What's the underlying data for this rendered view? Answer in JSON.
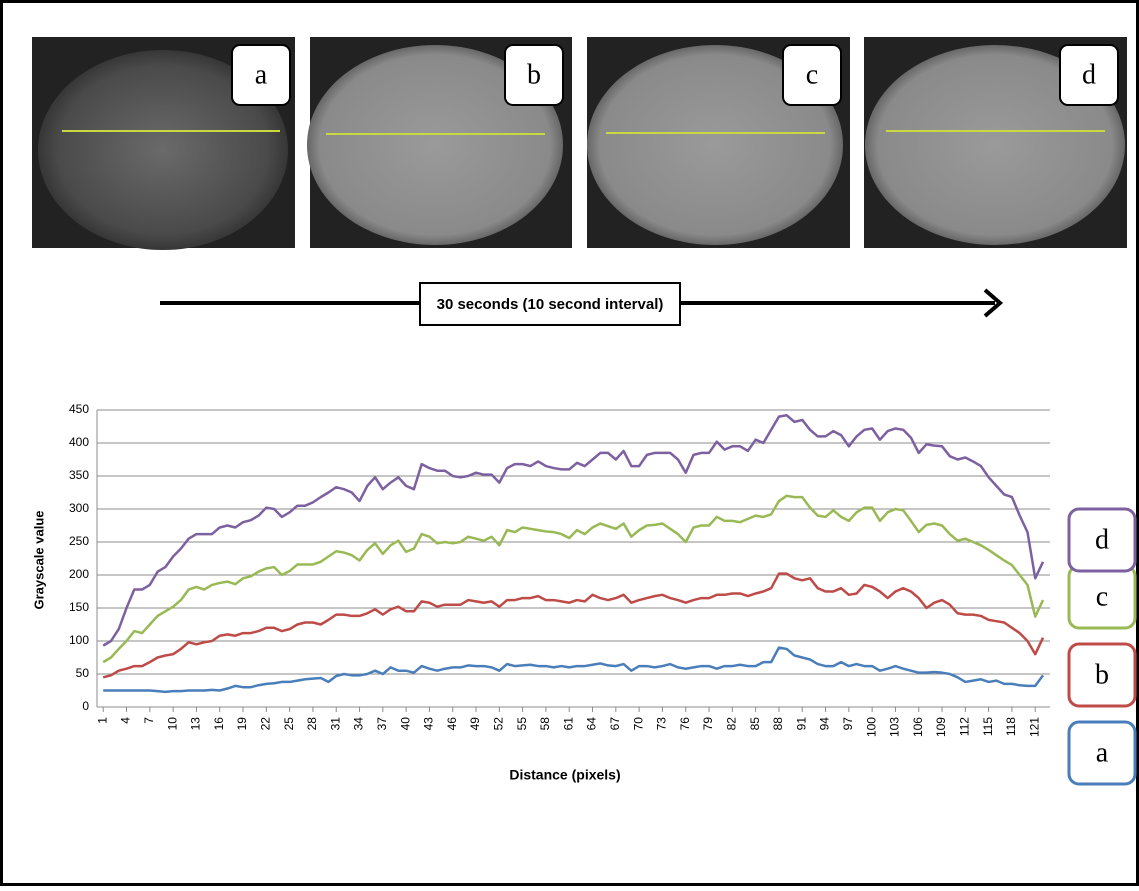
{
  "images": [
    {
      "label": "a"
    },
    {
      "label": "b"
    },
    {
      "label": "c"
    },
    {
      "label": "d"
    }
  ],
  "arrow_label": "30 seconds (10 second interval)",
  "chart_data": {
    "type": "line",
    "x_label": "Distance (pixels)",
    "y_label": "Grayscale value",
    "x": [
      1,
      2,
      3,
      4,
      5,
      6,
      7,
      8,
      9,
      10,
      11,
      12,
      13,
      14,
      15,
      16,
      17,
      18,
      19,
      20,
      21,
      22,
      23,
      24,
      25,
      26,
      27,
      28,
      29,
      30,
      31,
      32,
      33,
      34,
      35,
      36,
      37,
      38,
      39,
      40,
      41,
      42,
      43,
      44,
      45,
      46,
      47,
      48,
      49,
      50,
      51,
      52,
      53,
      54,
      55,
      56,
      57,
      58,
      59,
      60,
      61,
      62,
      63,
      64,
      65,
      66,
      67,
      68,
      69,
      70,
      71,
      72,
      73,
      74,
      75,
      76,
      77,
      78,
      79,
      80,
      81,
      82,
      83,
      84,
      85,
      86,
      87,
      88,
      89,
      90,
      91,
      92,
      93,
      94,
      95,
      96,
      97,
      98,
      99,
      100,
      101,
      102,
      103,
      104,
      105,
      106,
      107,
      108,
      109,
      110,
      111,
      112,
      113,
      114,
      115,
      116,
      117,
      118,
      119,
      120,
      121,
      122
    ],
    "xlim": [
      0.2,
      122.9
    ],
    "xticks": [
      1,
      4,
      7,
      10,
      13,
      16,
      19,
      22,
      25,
      28,
      31,
      34,
      37,
      40,
      43,
      46,
      49,
      52,
      55,
      58,
      61,
      64,
      67,
      70,
      73,
      76,
      79,
      82,
      85,
      88,
      91,
      94,
      97,
      100,
      103,
      106,
      109,
      112,
      115,
      118,
      121
    ],
    "ylim": [
      0,
      450
    ],
    "yticks": [
      0,
      50,
      100,
      150,
      200,
      250,
      300,
      350,
      400,
      450
    ],
    "grid": true,
    "series": [
      {
        "name": "a",
        "color": "#4a7ebb",
        "values": [
          25,
          25,
          25,
          25,
          25,
          25,
          25,
          24,
          23,
          24,
          24,
          25,
          25,
          25,
          26,
          25,
          28,
          32,
          30,
          30,
          33,
          35,
          36,
          38,
          38,
          40,
          42,
          43,
          44,
          38,
          47,
          50,
          48,
          48,
          50,
          55,
          50,
          60,
          55,
          55,
          52,
          62,
          58,
          55,
          58,
          60,
          60,
          63,
          62,
          62,
          60,
          55,
          65,
          62,
          63,
          64,
          62,
          62,
          60,
          62,
          60,
          62,
          62,
          64,
          66,
          63,
          62,
          65,
          55,
          62,
          62,
          60,
          62,
          65,
          60,
          58,
          60,
          62,
          62,
          58,
          62,
          62,
          64,
          62,
          62,
          68,
          68,
          90,
          88,
          78,
          75,
          72,
          65,
          62,
          62,
          68,
          62,
          65,
          62,
          62,
          55,
          58,
          62,
          58,
          55,
          52,
          52,
          53,
          52,
          50,
          45,
          38,
          40,
          42,
          38,
          40,
          35,
          35,
          33,
          32,
          32,
          48
        ]
      },
      {
        "name": "b",
        "color": "#be4b48",
        "values": [
          45,
          48,
          55,
          58,
          62,
          62,
          68,
          75,
          78,
          80,
          88,
          98,
          95,
          98,
          100,
          108,
          110,
          108,
          112,
          112,
          115,
          120,
          120,
          115,
          118,
          125,
          128,
          128,
          125,
          132,
          140,
          140,
          138,
          138,
          142,
          148,
          140,
          148,
          152,
          145,
          145,
          160,
          158,
          152,
          155,
          155,
          155,
          162,
          160,
          158,
          160,
          152,
          162,
          162,
          165,
          165,
          168,
          162,
          162,
          160,
          158,
          162,
          160,
          170,
          165,
          162,
          165,
          170,
          158,
          162,
          165,
          168,
          170,
          165,
          162,
          158,
          162,
          165,
          165,
          170,
          170,
          172,
          172,
          168,
          172,
          175,
          180,
          202,
          202,
          195,
          192,
          195,
          180,
          175,
          175,
          180,
          170,
          172,
          185,
          182,
          175,
          165,
          175,
          180,
          175,
          165,
          150,
          158,
          162,
          155,
          142,
          140,
          140,
          138,
          132,
          130,
          128,
          120,
          112,
          100,
          80,
          105
        ]
      },
      {
        "name": "c",
        "color": "#98b954",
        "values": [
          68,
          75,
          88,
          100,
          115,
          112,
          125,
          138,
          145,
          152,
          162,
          178,
          182,
          178,
          185,
          188,
          190,
          186,
          195,
          198,
          205,
          210,
          212,
          200,
          206,
          216,
          216,
          216,
          220,
          228,
          236,
          234,
          230,
          222,
          238,
          248,
          232,
          245,
          252,
          235,
          240,
          262,
          258,
          248,
          250,
          248,
          250,
          258,
          255,
          252,
          258,
          245,
          268,
          265,
          272,
          270,
          268,
          266,
          265,
          262,
          256,
          268,
          262,
          272,
          278,
          274,
          270,
          278,
          258,
          268,
          275,
          276,
          278,
          270,
          262,
          250,
          272,
          275,
          275,
          288,
          282,
          282,
          280,
          285,
          290,
          288,
          292,
          312,
          320,
          318,
          318,
          302,
          290,
          288,
          298,
          288,
          282,
          295,
          302,
          302,
          282,
          295,
          300,
          298,
          282,
          265,
          276,
          278,
          275,
          262,
          252,
          255,
          250,
          245,
          238,
          230,
          222,
          215,
          200,
          185,
          137,
          162
        ]
      },
      {
        "name": "d",
        "color": "#7d60a0",
        "values": [
          93,
          100,
          118,
          150,
          178,
          178,
          185,
          205,
          212,
          228,
          240,
          255,
          262,
          262,
          262,
          272,
          275,
          272,
          280,
          283,
          290,
          302,
          300,
          288,
          295,
          305,
          305,
          310,
          318,
          325,
          333,
          330,
          325,
          312,
          335,
          348,
          330,
          340,
          348,
          335,
          330,
          368,
          362,
          358,
          358,
          350,
          348,
          350,
          355,
          352,
          352,
          340,
          362,
          368,
          368,
          365,
          372,
          365,
          362,
          360,
          360,
          370,
          365,
          375,
          385,
          385,
          375,
          388,
          365,
          365,
          382,
          385,
          385,
          385,
          375,
          355,
          382,
          385,
          385,
          402,
          390,
          395,
          395,
          388,
          405,
          400,
          420,
          440,
          442,
          432,
          435,
          420,
          410,
          410,
          418,
          412,
          395,
          410,
          420,
          422,
          405,
          418,
          422,
          420,
          408,
          385,
          398,
          396,
          395,
          380,
          375,
          378,
          372,
          365,
          348,
          335,
          322,
          318,
          290,
          265,
          195,
          220
        ]
      }
    ]
  }
}
